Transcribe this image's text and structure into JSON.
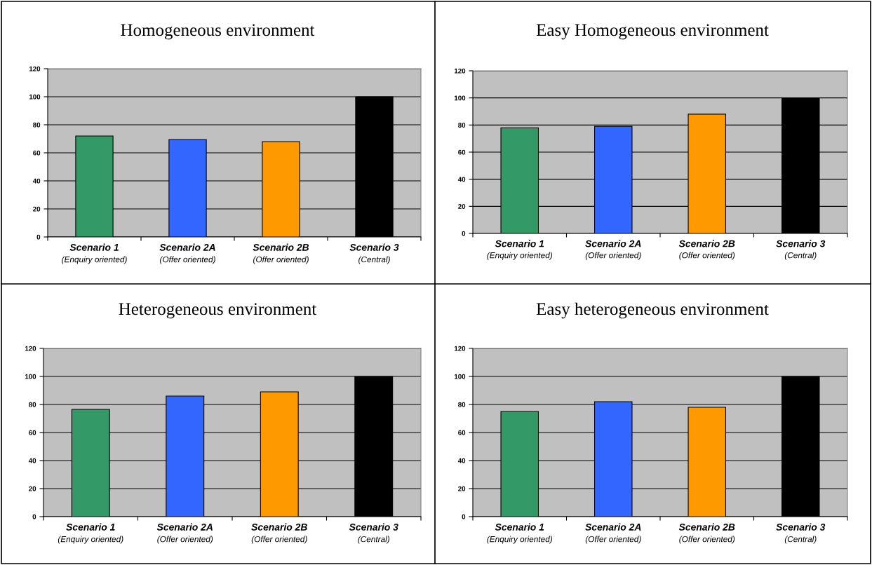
{
  "chart_data": [
    {
      "type": "bar",
      "title": "Homogeneous environment",
      "categories": [
        "Scenario 1\n(Enquiry oriented)",
        "Scenario 2A\n(Offer oriented)",
        "Scenario 2B\n(Offer oriented)",
        "Scenario 3\n(Central)"
      ],
      "values": [
        72,
        69.5,
        68,
        100
      ],
      "colors": [
        "#339966",
        "#3366ff",
        "#ff9900",
        "#000000"
      ],
      "ylim": [
        0,
        120
      ],
      "yticks": [
        0,
        20,
        40,
        60,
        80,
        100,
        120
      ],
      "grid": "y"
    },
    {
      "type": "bar",
      "title": "Easy Homogeneous environment",
      "categories": [
        "Scenario 1\n(Enquiry oriented)",
        "Scenario 2A\n(Offer oriented)",
        "Scenario 2B\n(Offer oriented)",
        "Scenario 3\n(Central)"
      ],
      "values": [
        78,
        79,
        88,
        100
      ],
      "colors": [
        "#339966",
        "#3366ff",
        "#ff9900",
        "#000000"
      ],
      "ylim": [
        0,
        120
      ],
      "yticks": [
        0,
        20,
        40,
        60,
        80,
        100,
        120
      ],
      "grid": "y"
    },
    {
      "type": "bar",
      "title": "Heterogeneous environment",
      "categories": [
        "Scenario 1\n(Enquiry oriented)",
        "Scenario 2A\n(Offer oriented)",
        "Scenario 2B\n(Offer oriented)",
        "Scenario 3\n(Central)"
      ],
      "values": [
        76.5,
        86,
        89,
        100
      ],
      "colors": [
        "#339966",
        "#3366ff",
        "#ff9900",
        "#000000"
      ],
      "ylim": [
        0,
        120
      ],
      "yticks": [
        0,
        20,
        40,
        60,
        80,
        100,
        120
      ],
      "grid": "y"
    },
    {
      "type": "bar",
      "title": "Easy heterogeneous environment",
      "categories": [
        "Scenario 1\n(Enquiry oriented)",
        "Scenario 2A\n(Offer oriented)",
        "Scenario 2B\n(Offer oriented)",
        "Scenario 3\n(Central)"
      ],
      "values": [
        75,
        82,
        78,
        100
      ],
      "colors": [
        "#339966",
        "#3366ff",
        "#ff9900",
        "#000000"
      ],
      "ylim": [
        0,
        120
      ],
      "yticks": [
        0,
        20,
        40,
        60,
        80,
        100,
        120
      ],
      "grid": "y"
    }
  ]
}
